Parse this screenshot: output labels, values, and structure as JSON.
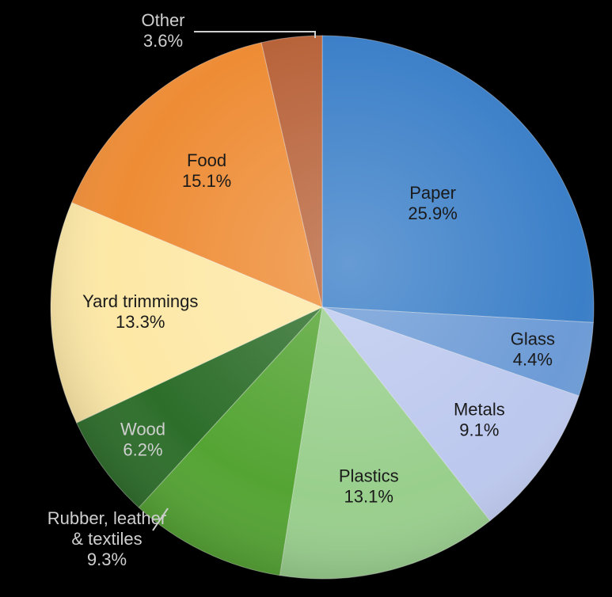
{
  "chart_data": {
    "type": "pie",
    "start_angle_deg": 0,
    "direction": "clockwise",
    "slices": [
      {
        "name": "Paper",
        "value": 25.9,
        "value_label": "25.9%",
        "color": "#3b7fc8"
      },
      {
        "name": "Glass",
        "value": 4.4,
        "value_label": "4.4%",
        "color": "#6d9bd6"
      },
      {
        "name": "Metals",
        "value": 9.1,
        "value_label": "9.1%",
        "color": "#bcc8ee"
      },
      {
        "name": "Plastics",
        "value": 13.1,
        "value_label": "13.1%",
        "color": "#99cf8d"
      },
      {
        "name": "Rubber, leather & textiles",
        "value": 9.3,
        "value_label": "9.3%",
        "color": "#54a433",
        "lines": [
          "Rubber, leather",
          "& textiles",
          "9.3%"
        ]
      },
      {
        "name": "Wood",
        "value": 6.2,
        "value_label": "6.2%",
        "color": "#2d6e2a"
      },
      {
        "name": "Yard trimmings",
        "value": 13.3,
        "value_label": "13.3%",
        "color": "#fde8a6"
      },
      {
        "name": "Food",
        "value": 15.1,
        "value_label": "15.1%",
        "color": "#ee8c35"
      },
      {
        "name": "Other",
        "value": 3.6,
        "value_label": "3.6%",
        "color": "#b8633a"
      }
    ]
  }
}
